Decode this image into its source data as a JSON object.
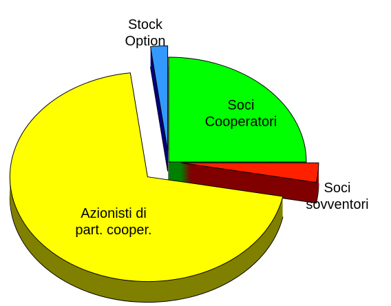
{
  "chart_data": {
    "type": "pie",
    "categories": [
      "Soci Cooperatori",
      "Soci sovventori",
      "Azionisti di part. cooper.",
      "Stock Option"
    ],
    "values": [
      25,
      3,
      70,
      2
    ],
    "colors": [
      "#00ff00",
      "#ff2000",
      "#ffff00",
      "#3399ff"
    ]
  }
}
